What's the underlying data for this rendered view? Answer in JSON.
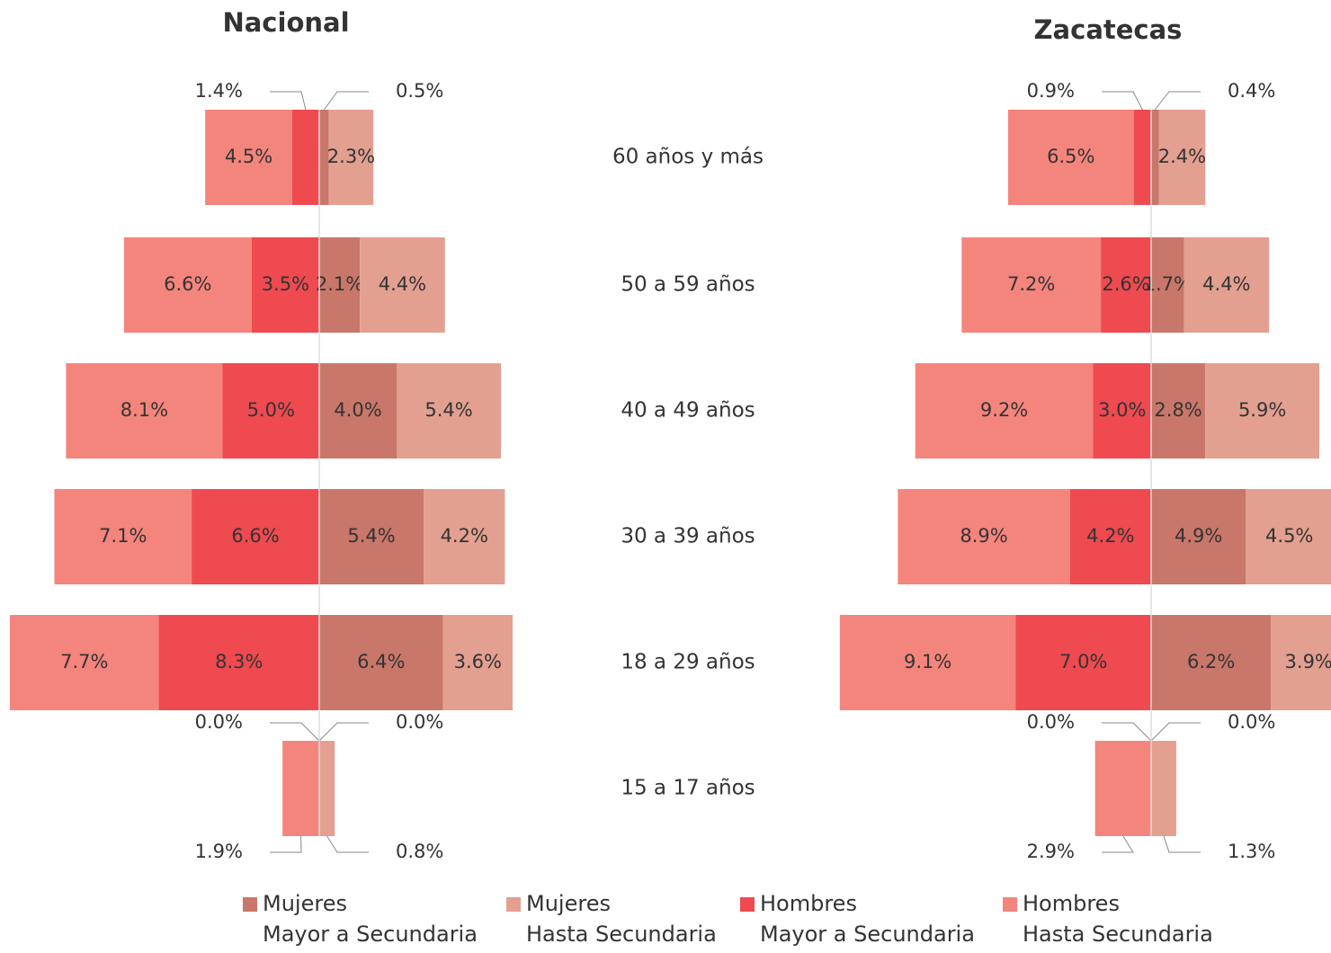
{
  "chart_data": {
    "type": "pyramid",
    "categories": [
      "60 años y más",
      "50 a 59 años",
      "40 a 49 años",
      "30 a 39 años",
      "18 a 29 años",
      "15 a 17 años"
    ],
    "series": [
      {
        "name": "Hombres Hasta Secundaria",
        "color": "#f4857d"
      },
      {
        "name": "Hombres Mayor a Secundaria",
        "color": "#ee4a50"
      },
      {
        "name": "Mujeres Mayor a Secundaria",
        "color": "#c9776a"
      },
      {
        "name": "Mujeres Hasta Secundaria",
        "color": "#e3a090"
      }
    ],
    "legend_order": [
      2,
      3,
      1,
      0
    ],
    "legend_labels": [
      "Mujeres\nMayor a Secundaria",
      "Mujeres\nHasta Secundaria",
      "Hombres\nMayor a Secundaria",
      "Hombres\nHasta Secundaria"
    ],
    "panels": [
      {
        "title": "Nacional",
        "values": [
          [
            4.5,
            6.6,
            8.1,
            7.1,
            7.7,
            1.9
          ],
          [
            1.4,
            3.5,
            5.0,
            6.6,
            8.3,
            0.0
          ],
          [
            0.5,
            2.1,
            4.0,
            5.4,
            6.4,
            0.0
          ],
          [
            2.3,
            4.4,
            5.4,
            4.2,
            3.6,
            0.8
          ]
        ],
        "value_labels": [
          [
            "4.5%",
            "6.6%",
            "8.1%",
            "7.1%",
            "7.7%",
            "1.9%"
          ],
          [
            "1.4%",
            "3.5%",
            "5.0%",
            "6.6%",
            "8.3%",
            "0.0%"
          ],
          [
            "0.5%",
            "2.1%",
            "4.0%",
            "5.4%",
            "6.4%",
            "0.0%"
          ],
          [
            "2.3%",
            "4.4%",
            "5.4%",
            "4.2%",
            "3.6%",
            "0.8%"
          ]
        ]
      },
      {
        "title": "Zacatecas",
        "values": [
          [
            6.5,
            7.2,
            9.2,
            8.9,
            9.1,
            2.9
          ],
          [
            0.9,
            2.6,
            3.0,
            4.2,
            7.0,
            0.0
          ],
          [
            0.4,
            1.7,
            2.8,
            4.9,
            6.2,
            0.0
          ],
          [
            2.4,
            4.4,
            5.9,
            4.5,
            3.9,
            1.3
          ]
        ],
        "value_labels": [
          [
            "6.5%",
            "7.2%",
            "9.2%",
            "8.9%",
            "9.1%",
            "2.9%"
          ],
          [
            "0.9%",
            "2.6%",
            "3.0%",
            "4.2%",
            "7.0%",
            "0.0%"
          ],
          [
            "0.4%",
            "1.7%",
            "2.8%",
            "4.9%",
            "6.2%",
            "0.0%"
          ],
          [
            "2.4%",
            "4.4%",
            "5.9%",
            "4.5%",
            "3.9%",
            "1.3%"
          ]
        ]
      }
    ]
  }
}
